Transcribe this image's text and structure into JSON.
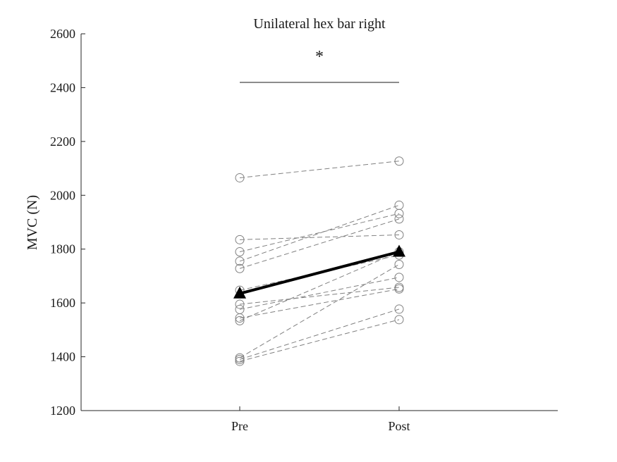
{
  "chart_data": {
    "type": "line",
    "title": "Unilateral hex bar right",
    "xlabel": "",
    "ylabel": "MVC (N)",
    "categories": [
      "Pre",
      "Post"
    ],
    "ylim": [
      1200,
      2600
    ],
    "yticks": [
      1200,
      1400,
      1600,
      1800,
      2000,
      2200,
      2400,
      2600
    ],
    "grid": false,
    "significance_marker": "*",
    "series_color": "#808080",
    "mean_color": "#000000",
    "individual_series": [
      {
        "values": [
          2065,
          2127
        ]
      },
      {
        "values": [
          1835,
          1853
        ]
      },
      {
        "values": [
          1790,
          1932
        ]
      },
      {
        "values": [
          1755,
          1963
        ]
      },
      {
        "values": [
          1728,
          1912
        ]
      },
      {
        "values": [
          1647,
          1778
        ]
      },
      {
        "values": [
          1595,
          1658
        ]
      },
      {
        "values": [
          1576,
          1695
        ]
      },
      {
        "values": [
          1544,
          1652
        ]
      },
      {
        "values": [
          1534,
          1790
        ]
      },
      {
        "values": [
          1396,
          1743
        ]
      },
      {
        "values": [
          1390,
          1577
        ]
      },
      {
        "values": [
          1383,
          1538
        ]
      }
    ],
    "mean_series": {
      "values": [
        1635,
        1790
      ]
    }
  }
}
